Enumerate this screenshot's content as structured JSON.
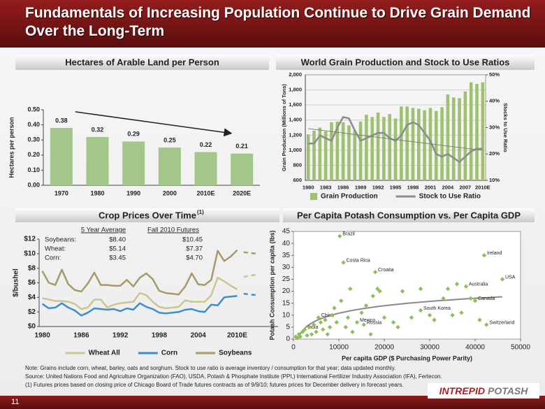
{
  "header": {
    "title": "Fundamentals of Increasing Population Continue to Drive Grain Demand Over the Long-Term"
  },
  "chart_data": [
    {
      "type": "bar",
      "title": "Hectares of Arable Land per Person",
      "y_label": "Hectares per person",
      "categories": [
        "1970",
        "1980",
        "1990",
        "2000",
        "2010E",
        "2020E"
      ],
      "values": [
        0.38,
        0.32,
        0.29,
        0.25,
        0.22,
        0.21
      ],
      "color": "#a3c68a",
      "ylim": [
        0,
        0.5
      ],
      "yticks": [
        {
          "value": 0,
          "label": "0.00"
        },
        {
          "value": 0.1,
          "label": "0.10"
        },
        {
          "value": 0.2,
          "label": "0.20"
        },
        {
          "value": 0.3,
          "label": "0.30"
        },
        {
          "value": 0.4,
          "label": "0.40"
        },
        {
          "value": 0.5,
          "label": "0.50"
        }
      ],
      "grid": false
    },
    {
      "type": "bar",
      "title": "World Grain Production and Stock to Use Ratios",
      "y_label": "Grain Production (Millions of Tons)",
      "y2_label": "Stocks to Use Ratio",
      "categories": [
        "1980",
        null,
        null,
        "1983",
        null,
        null,
        "1986",
        null,
        null,
        "1989",
        null,
        null,
        "1992",
        null,
        null,
        "1995",
        null,
        null,
        "1998",
        null,
        null,
        "2001",
        null,
        null,
        "2004",
        null,
        null,
        "2007",
        null,
        null,
        "2010E"
      ],
      "series": [
        {
          "name": "Grain Production",
          "color": "#9dc16f",
          "values": [
            1210,
            1260,
            1300,
            1250,
            1370,
            1380,
            1370,
            1330,
            1260,
            1380,
            1470,
            1440,
            1500,
            1440,
            1480,
            1420,
            1580,
            1580,
            1560,
            1550,
            1530,
            1560,
            1520,
            1570,
            1740,
            1700,
            1690,
            1780,
            1900,
            1880,
            1900
          ]
        },
        {
          "name": "Stock to Use Ratio",
          "type": "line",
          "axis": "y2",
          "color": "#8c8c8c",
          "values": [
            24,
            24,
            27,
            26,
            25,
            30,
            34,
            33.5,
            29,
            25,
            26,
            27,
            28,
            28,
            26,
            25,
            27,
            31,
            32,
            31,
            28,
            25,
            20,
            19,
            20,
            18.5,
            17,
            19,
            21,
            22,
            22
          ]
        }
      ],
      "ylim": [
        600,
        2000
      ],
      "yticks": [
        600,
        800,
        {
          "value": 1000,
          "label": "1,000"
        },
        {
          "value": 1200,
          "label": "1,200"
        },
        {
          "value": 1400,
          "label": "1,400"
        },
        {
          "value": 1600,
          "label": "1,600"
        },
        {
          "value": 1800,
          "label": "1,800"
        },
        {
          "value": 2000,
          "label": "2,000"
        }
      ],
      "y2lim": [
        10,
        50
      ],
      "y2ticks": [
        {
          "value": 10,
          "label": "10%"
        },
        {
          "value": 20,
          "label": "20%"
        },
        {
          "value": 30,
          "label": "30%"
        },
        {
          "value": 40,
          "label": "40%"
        },
        {
          "value": 50,
          "label": "50%"
        }
      ],
      "grid": true,
      "trendline": true,
      "legend": "bottom"
    },
    {
      "type": "line",
      "title": "Crop Prices Over Time",
      "title_note": "(1)",
      "y_label": "$/bushel",
      "categories": [
        "1980",
        null,
        null,
        null,
        null,
        null,
        "1986",
        null,
        null,
        null,
        null,
        null,
        "1992",
        null,
        null,
        null,
        null,
        null,
        "1998",
        null,
        null,
        null,
        null,
        null,
        "2004",
        null,
        null,
        null,
        null,
        null,
        "2010E",
        null,
        null,
        null
      ],
      "series": [
        {
          "name": "Wheat All",
          "color": "#cdc58f",
          "values": [
            3.9,
            3.7,
            3.5,
            3.5,
            3.4,
            3.1,
            2.4,
            2.6,
            3.7,
            3.7,
            2.6,
            3.0,
            3.2,
            3.3,
            3.4,
            4.6,
            4.3,
            3.4,
            2.7,
            2.5,
            2.6,
            2.7,
            3.6,
            3.4,
            3.4,
            3.4,
            4.3,
            6.7,
            6.2,
            5.6,
            5.1,
            null,
            null,
            null
          ],
          "futures": [
            null,
            null,
            null,
            null,
            null,
            null,
            null,
            null,
            null,
            null,
            null,
            null,
            null,
            null,
            null,
            null,
            null,
            null,
            null,
            null,
            null,
            null,
            null,
            null,
            null,
            null,
            null,
            null,
            null,
            null,
            null,
            6.8,
            7.0,
            7.1
          ]
        },
        {
          "name": "Corn",
          "color": "#3b8fd0",
          "values": [
            3.1,
            2.5,
            2.6,
            3.2,
            2.6,
            2.2,
            1.5,
            1.9,
            2.5,
            2.4,
            2.3,
            2.4,
            2.1,
            2.5,
            2.3,
            3.2,
            2.7,
            2.4,
            1.9,
            1.8,
            1.9,
            2.0,
            2.3,
            2.4,
            2.1,
            2.0,
            3.0,
            2.9,
            4.0,
            4.1,
            4.2,
            null,
            null,
            null
          ],
          "futures": [
            null,
            null,
            null,
            null,
            null,
            null,
            null,
            null,
            null,
            null,
            null,
            null,
            null,
            null,
            null,
            null,
            null,
            null,
            null,
            null,
            null,
            null,
            null,
            null,
            null,
            null,
            null,
            null,
            null,
            null,
            null,
            4.5,
            4.4,
            4.3
          ]
        },
        {
          "name": "Soybeans",
          "color": "#a59a68",
          "values": [
            7.6,
            6.0,
            5.7,
            7.8,
            5.8,
            5.0,
            4.8,
            5.9,
            7.4,
            5.7,
            5.7,
            5.6,
            5.6,
            6.4,
            5.5,
            6.7,
            7.3,
            6.5,
            4.9,
            4.6,
            4.5,
            4.4,
            5.5,
            7.3,
            5.8,
            5.7,
            6.4,
            10.4,
            9.0,
            9.6,
            10.5,
            null,
            null,
            null
          ],
          "futures": [
            null,
            null,
            null,
            null,
            null,
            null,
            null,
            null,
            null,
            null,
            null,
            null,
            null,
            null,
            null,
            null,
            null,
            null,
            null,
            null,
            null,
            null,
            null,
            null,
            null,
            null,
            null,
            null,
            null,
            null,
            null,
            10.2,
            10.1,
            10.0
          ]
        }
      ],
      "ylim": [
        0,
        12
      ],
      "yticks": [
        {
          "value": 0,
          "label": "$0"
        },
        {
          "value": 2,
          "label": "$2"
        },
        {
          "value": 4,
          "label": "$4"
        },
        {
          "value": 6,
          "label": "$6"
        },
        {
          "value": 8,
          "label": "$8"
        },
        {
          "value": 10,
          "label": "$10"
        },
        {
          "value": 12,
          "label": "$12"
        }
      ],
      "grid": false,
      "legend": "bottom",
      "table": {
        "columns": [
          "5 Year Average",
          "Fall 2010 Futures"
        ],
        "rows": [
          [
            "Soybeans:",
            "$8.40",
            "$10.45"
          ],
          [
            "Wheat:",
            "$5.14",
            "$7.37"
          ],
          [
            "Corn:",
            "$3.45",
            "$4.70"
          ]
        ]
      }
    },
    {
      "type": "scatter",
      "title": "Per Capita Potash Consumption vs. Per Capita GDP",
      "x_label": "Per capita GDP ($ Purchasing Power Parity)",
      "y_label": "Potash Consumption per capita (lbs)",
      "series": [
        {
          "color": "#8fbf5a",
          "x": [
            500,
            800,
            1200,
            1500,
            2000,
            2500,
            3000,
            3500,
            4000,
            4500,
            5000,
            5500,
            6000,
            6500,
            7000,
            7500,
            8000,
            8500,
            9000,
            9500,
            10200,
            10500,
            11000,
            11500,
            12000,
            12500,
            13000,
            14000,
            15000,
            15500,
            16000,
            17000,
            17500,
            18000,
            18500,
            19000,
            20000,
            22000,
            23000,
            24000,
            26000,
            28000,
            28000,
            30000,
            31000,
            33000,
            34000,
            35000,
            36000,
            37000,
            38000,
            39000,
            40000,
            41000,
            42000,
            42500,
            46000
          ],
          "values": [
            1,
            0.5,
            2,
            1,
            3,
            4,
            1.5,
            5,
            2,
            6,
            3,
            9,
            7,
            4,
            8,
            2,
            5,
            10,
            13,
            7,
            43,
            16,
            32,
            5,
            9,
            21,
            3,
            7,
            11,
            6,
            14,
            2,
            18,
            28,
            21,
            20,
            9,
            7,
            5,
            20,
            9,
            12,
            21,
            10,
            8,
            17,
            21,
            10,
            23,
            11,
            22,
            17,
            16,
            8,
            35,
            6,
            25
          ],
          "point_labels": [
            null,
            null,
            null,
            null,
            null,
            "India",
            null,
            null,
            null,
            null,
            null,
            "China",
            null,
            null,
            null,
            null,
            null,
            null,
            null,
            null,
            "Brazil",
            null,
            "Costa Rica",
            null,
            null,
            null,
            null,
            "Mexico",
            null,
            "Russia",
            null,
            null,
            null,
            "Croatia",
            null,
            null,
            null,
            null,
            null,
            null,
            null,
            "South Korea",
            null,
            null,
            null,
            null,
            null,
            null,
            null,
            null,
            "Australia",
            null,
            "Canada",
            null,
            "Ireland",
            "Switzerland",
            "USA"
          ]
        }
      ],
      "xlim": [
        0,
        50000
      ],
      "xticks": [
        0,
        10000,
        20000,
        30000,
        40000,
        50000
      ],
      "ylim": [
        0,
        45
      ],
      "yticks": [
        0,
        5,
        10,
        15,
        20,
        25,
        30,
        35,
        40,
        45
      ],
      "trendline": true
    }
  ],
  "notes": [
    "Note: Grains include corn, wheat, barley, oats and sorghum. Stock to use ratio is average inventory / consumption for that year; data updated monthly.",
    "Source: United Nations Food and Agriculture Organization (FAO), USDA, Potash & Phosphate Institute (PPI,) International Fertilizer Industry Association (IFA), Fertecon.",
    "(1) Futures prices based on closing price of Chicago Board of Trade futures contracts as of 9/9/10; futures prices for December delivery in forecast years."
  ],
  "page_number": "11",
  "logo": {
    "brand": "INTREPID",
    "product": "POTASH"
  }
}
